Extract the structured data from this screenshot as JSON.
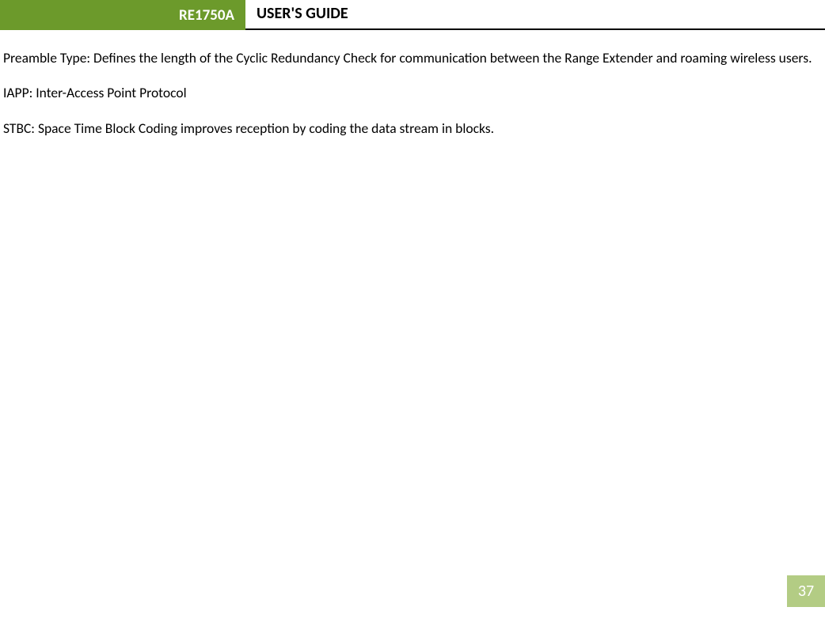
{
  "header": {
    "product_model": "RE1750A",
    "guide_title": "USER'S GUIDE"
  },
  "content": {
    "paragraph1": "Preamble Type: Defines the length of the Cyclic Redundancy Check for communication between the Range Extender and roaming wireless users.",
    "paragraph2": "IAPP: Inter-Access Point Protocol",
    "paragraph3": "STBC: Space Time Block Coding improves reception by coding the data stream in blocks."
  },
  "page_number": "37",
  "colors": {
    "header_tab_bg": "#6c9a2b",
    "header_tab_text": "#ffffff",
    "header_border": "#000000",
    "body_text": "#000000",
    "page_number_bg": "#b3cc84",
    "page_number_text": "#ffffff"
  }
}
